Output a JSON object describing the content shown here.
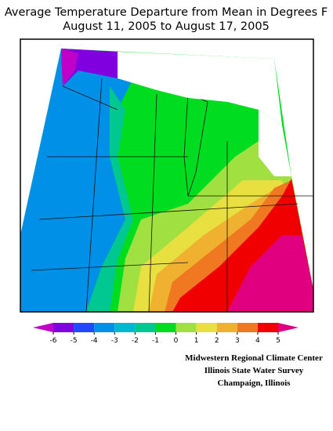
{
  "title": [
    "Average Temperature Departure from Mean in Degrees F",
    "August 11, 2005 to August 17, 2005"
  ],
  "legend": {
    "ticks": [
      -6,
      -5,
      -4,
      -3,
      -2,
      -1,
      0,
      1,
      2,
      3,
      4,
      5
    ],
    "colors": [
      "#c000c8",
      "#8000e0",
      "#2048ff",
      "#0090e8",
      "#00b8d0",
      "#00c890",
      "#00dc20",
      "#a0e040",
      "#e8e040",
      "#f0b030",
      "#f07820",
      "#f00000",
      "#e0007f"
    ]
  },
  "credits": [
    "Midwestern Regional Climate Center",
    "Illinois State Water Survey",
    "Champaign, Illinois"
  ]
}
